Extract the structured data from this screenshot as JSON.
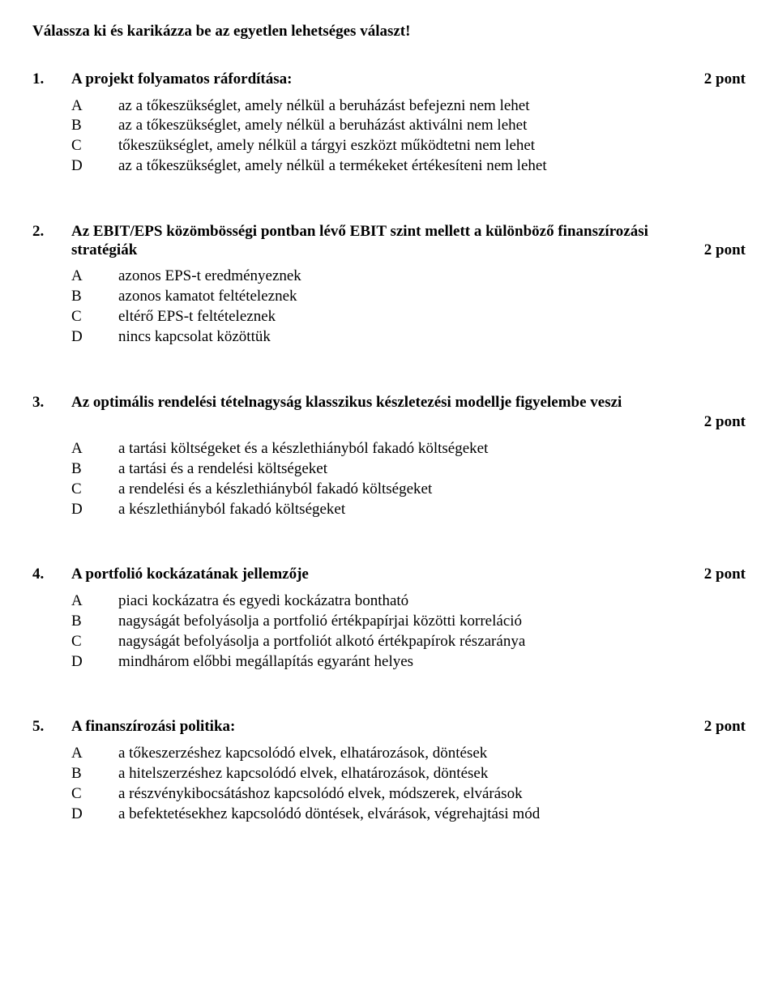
{
  "instruction": "Válassza ki és karikázza be az egyetlen lehetséges választ!",
  "point_label": "pont",
  "questions": [
    {
      "num": "1.",
      "title": "A projekt folyamatos ráfordítása:",
      "points": "2 pont",
      "points_inline": true,
      "options": [
        {
          "letter": "A",
          "text": "az a tőkeszükséglet, amely nélkül a beruházást befejezni nem lehet"
        },
        {
          "letter": "B",
          "text": "az a tőkeszükséglet, amely nélkül a beruházást aktiválni nem lehet"
        },
        {
          "letter": "C",
          "text": "tőkeszükséglet, amely nélkül a tárgyi eszközt működtetni nem lehet"
        },
        {
          "letter": "D",
          "text": "az a tőkeszükséglet, amely nélkül a termékeket értékesíteni nem lehet"
        }
      ]
    },
    {
      "num": "2.",
      "title": "Az EBIT/EPS közömbösségi pontban lévő EBIT szint mellett a különböző finanszírozási stratégiák",
      "points": "2 pont",
      "points_inline": true,
      "options": [
        {
          "letter": "A",
          "text": "azonos EPS-t eredményeznek"
        },
        {
          "letter": "B",
          "text": "azonos kamatot feltételeznek"
        },
        {
          "letter": "C",
          "text": "eltérő EPS-t feltételeznek"
        },
        {
          "letter": "D",
          "text": "nincs kapcsolat közöttük"
        }
      ]
    },
    {
      "num": "3.",
      "title": "Az optimális rendelési tételnagyság klasszikus készletezési modellje figyelembe veszi",
      "points": "2 pont",
      "points_inline": false,
      "options": [
        {
          "letter": "A",
          "text": "a tartási költségeket és a készlethiányból fakadó költségeket"
        },
        {
          "letter": "B",
          "text": "a tartási és a rendelési költségeket"
        },
        {
          "letter": "C",
          "text": "a rendelési és a készlethiányból fakadó költségeket"
        },
        {
          "letter": "D",
          "text": "a készlethiányból fakadó költségeket"
        }
      ]
    },
    {
      "num": "4.",
      "title": "A portfolió kockázatának jellemzője",
      "points": "2 pont",
      "points_inline": true,
      "options": [
        {
          "letter": "A",
          "text": "piaci kockázatra és egyedi kockázatra bontható"
        },
        {
          "letter": "B",
          "text": "nagyságát befolyásolja a portfolió értékpapírjai közötti korreláció"
        },
        {
          "letter": "C",
          "text": "nagyságát befolyásolja a portfoliót alkotó értékpapírok részaránya"
        },
        {
          "letter": "D",
          "text": "mindhárom előbbi megállapítás egyaránt helyes"
        }
      ]
    },
    {
      "num": "5.",
      "title": "A finanszírozási politika:",
      "points": "2 pont",
      "points_inline": true,
      "options": [
        {
          "letter": "A",
          "text": "a tőkeszerzéshez kapcsolódó elvek, elhatározások, döntések"
        },
        {
          "letter": "B",
          "text": "a hitelszerzéshez kapcsolódó elvek, elhatározások, döntések"
        },
        {
          "letter": "C",
          "text": "a részvénykibocsátáshoz kapcsolódó elvek, módszerek, elvárások"
        },
        {
          "letter": "D",
          "text": "a befektetésekhez kapcsolódó döntések, elvárások, végrehajtási mód"
        }
      ]
    }
  ]
}
